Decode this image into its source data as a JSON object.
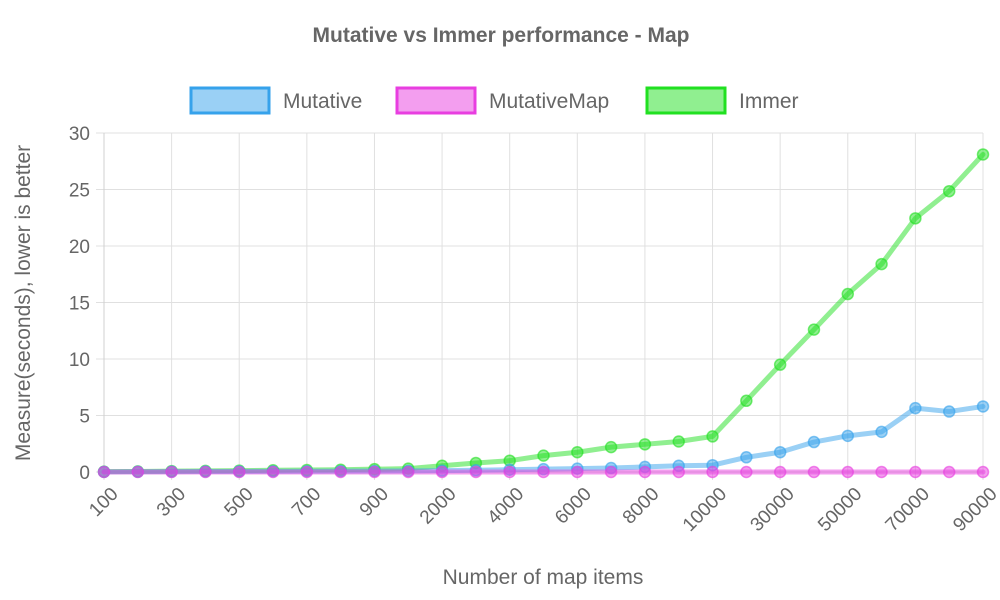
{
  "chart_data": {
    "type": "line",
    "title": "Mutative vs Immer performance - Map",
    "xlabel": "Number of map items",
    "ylabel": "Measure(seconds), lower is better",
    "ylim": [
      0,
      30
    ],
    "yticks": [
      "0",
      "5",
      "10",
      "15",
      "20",
      "25",
      "30"
    ],
    "grid": true,
    "legend_position": "top",
    "categories": [
      "100",
      "200",
      "300",
      "400",
      "500",
      "600",
      "700",
      "800",
      "900",
      "1000",
      "2000",
      "3000",
      "4000",
      "5000",
      "6000",
      "7000",
      "8000",
      "9000",
      "10000",
      "20000",
      "30000",
      "40000",
      "50000",
      "60000",
      "70000",
      "80000",
      "90000"
    ],
    "visible_x_tick_labels": [
      "100",
      "300",
      "500",
      "700",
      "900",
      "2000",
      "4000",
      "6000",
      "8000",
      "10000",
      "30000",
      "50000",
      "70000",
      "90000"
    ],
    "series": [
      {
        "name": "Mutative",
        "color": "#36a2eb",
        "values": [
          0.01,
          0.02,
          0.03,
          0.04,
          0.05,
          0.06,
          0.07,
          0.08,
          0.09,
          0.1,
          0.12,
          0.15,
          0.2,
          0.25,
          0.3,
          0.35,
          0.45,
          0.55,
          0.6,
          1.3,
          1.75,
          2.65,
          3.2,
          3.55,
          5.65,
          5.35,
          5.8
        ]
      },
      {
        "name": "MutativeMap",
        "color": "#e83ee0",
        "values": [
          0,
          0,
          0,
          0,
          0,
          0,
          0,
          0,
          0,
          0,
          0,
          0,
          0,
          0,
          0,
          0,
          0,
          0,
          0,
          0,
          0,
          0,
          0,
          0,
          0,
          0,
          0
        ]
      },
      {
        "name": "Immer",
        "color": "#21e021",
        "values": [
          0.03,
          0.05,
          0.08,
          0.1,
          0.12,
          0.15,
          0.18,
          0.2,
          0.25,
          0.3,
          0.55,
          0.8,
          1.0,
          1.45,
          1.75,
          2.2,
          2.45,
          2.7,
          3.15,
          6.3,
          9.5,
          12.6,
          15.75,
          18.4,
          22.45,
          24.85,
          28.1
        ]
      }
    ]
  }
}
